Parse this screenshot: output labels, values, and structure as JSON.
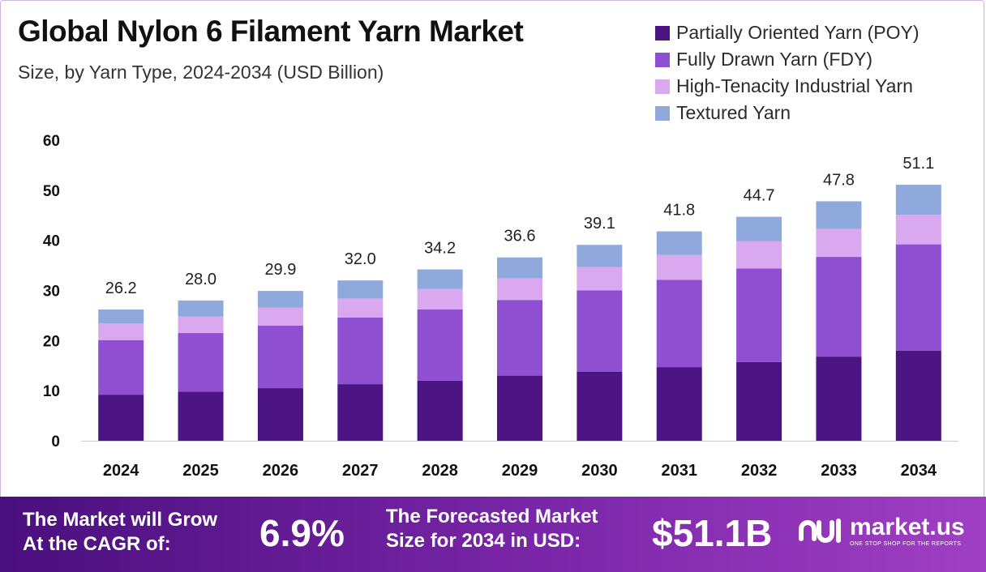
{
  "header": {
    "title": "Global Nylon 6 Filament Yarn Market",
    "subtitle": "Size, by Yarn Type, 2024-2034 (USD Billion)"
  },
  "chart_data": {
    "type": "bar",
    "stacked": true,
    "categories": [
      "2024",
      "2025",
      "2026",
      "2027",
      "2028",
      "2029",
      "2030",
      "2031",
      "2032",
      "2033",
      "2034"
    ],
    "series": [
      {
        "name": "Partially Oriented Yarn (POY)",
        "color": "#4d1484",
        "values": [
          9.2,
          9.8,
          10.5,
          11.3,
          12.0,
          13.0,
          13.8,
          14.7,
          15.7,
          16.8,
          18.0
        ]
      },
      {
        "name": "Fully Drawn Yarn (FDY)",
        "color": "#8e4fd1",
        "values": [
          10.9,
          11.7,
          12.5,
          13.3,
          14.2,
          15.1,
          16.2,
          17.4,
          18.7,
          19.9,
          21.2
        ]
      },
      {
        "name": "High-Tenacity Industrial Yarn",
        "color": "#d9a8ee",
        "values": [
          3.3,
          3.3,
          3.6,
          3.8,
          4.1,
          4.3,
          4.7,
          5.0,
          5.4,
          5.6,
          5.9
        ]
      },
      {
        "name": "Textured Yarn",
        "color": "#8fa9dc",
        "values": [
          2.8,
          3.2,
          3.3,
          3.6,
          3.9,
          4.2,
          4.4,
          4.7,
          4.9,
          5.5,
          6.0
        ]
      }
    ],
    "totals": [
      "26.2",
      "28.0",
      "29.9",
      "32.0",
      "34.2",
      "36.6",
      "39.1",
      "41.8",
      "44.7",
      "47.8",
      "51.1"
    ],
    "yticks": [
      0,
      10,
      20,
      30,
      40,
      50,
      60
    ],
    "ylim": [
      0,
      60
    ],
    "xlabel": "",
    "ylabel": "",
    "grid": false,
    "legend_position": "top-right"
  },
  "footer": {
    "cagr_label_line1": "The Market will Grow",
    "cagr_label_line2": "At the CAGR of:",
    "cagr_value": "6.9%",
    "forecast_label_line1": "The Forecasted Market",
    "forecast_label_line2": "Size for 2034 in USD:",
    "forecast_value": "$51.1B",
    "brand_name": "market.us",
    "brand_tagline": "ONE STOP SHOP FOR THE REPORTS"
  }
}
